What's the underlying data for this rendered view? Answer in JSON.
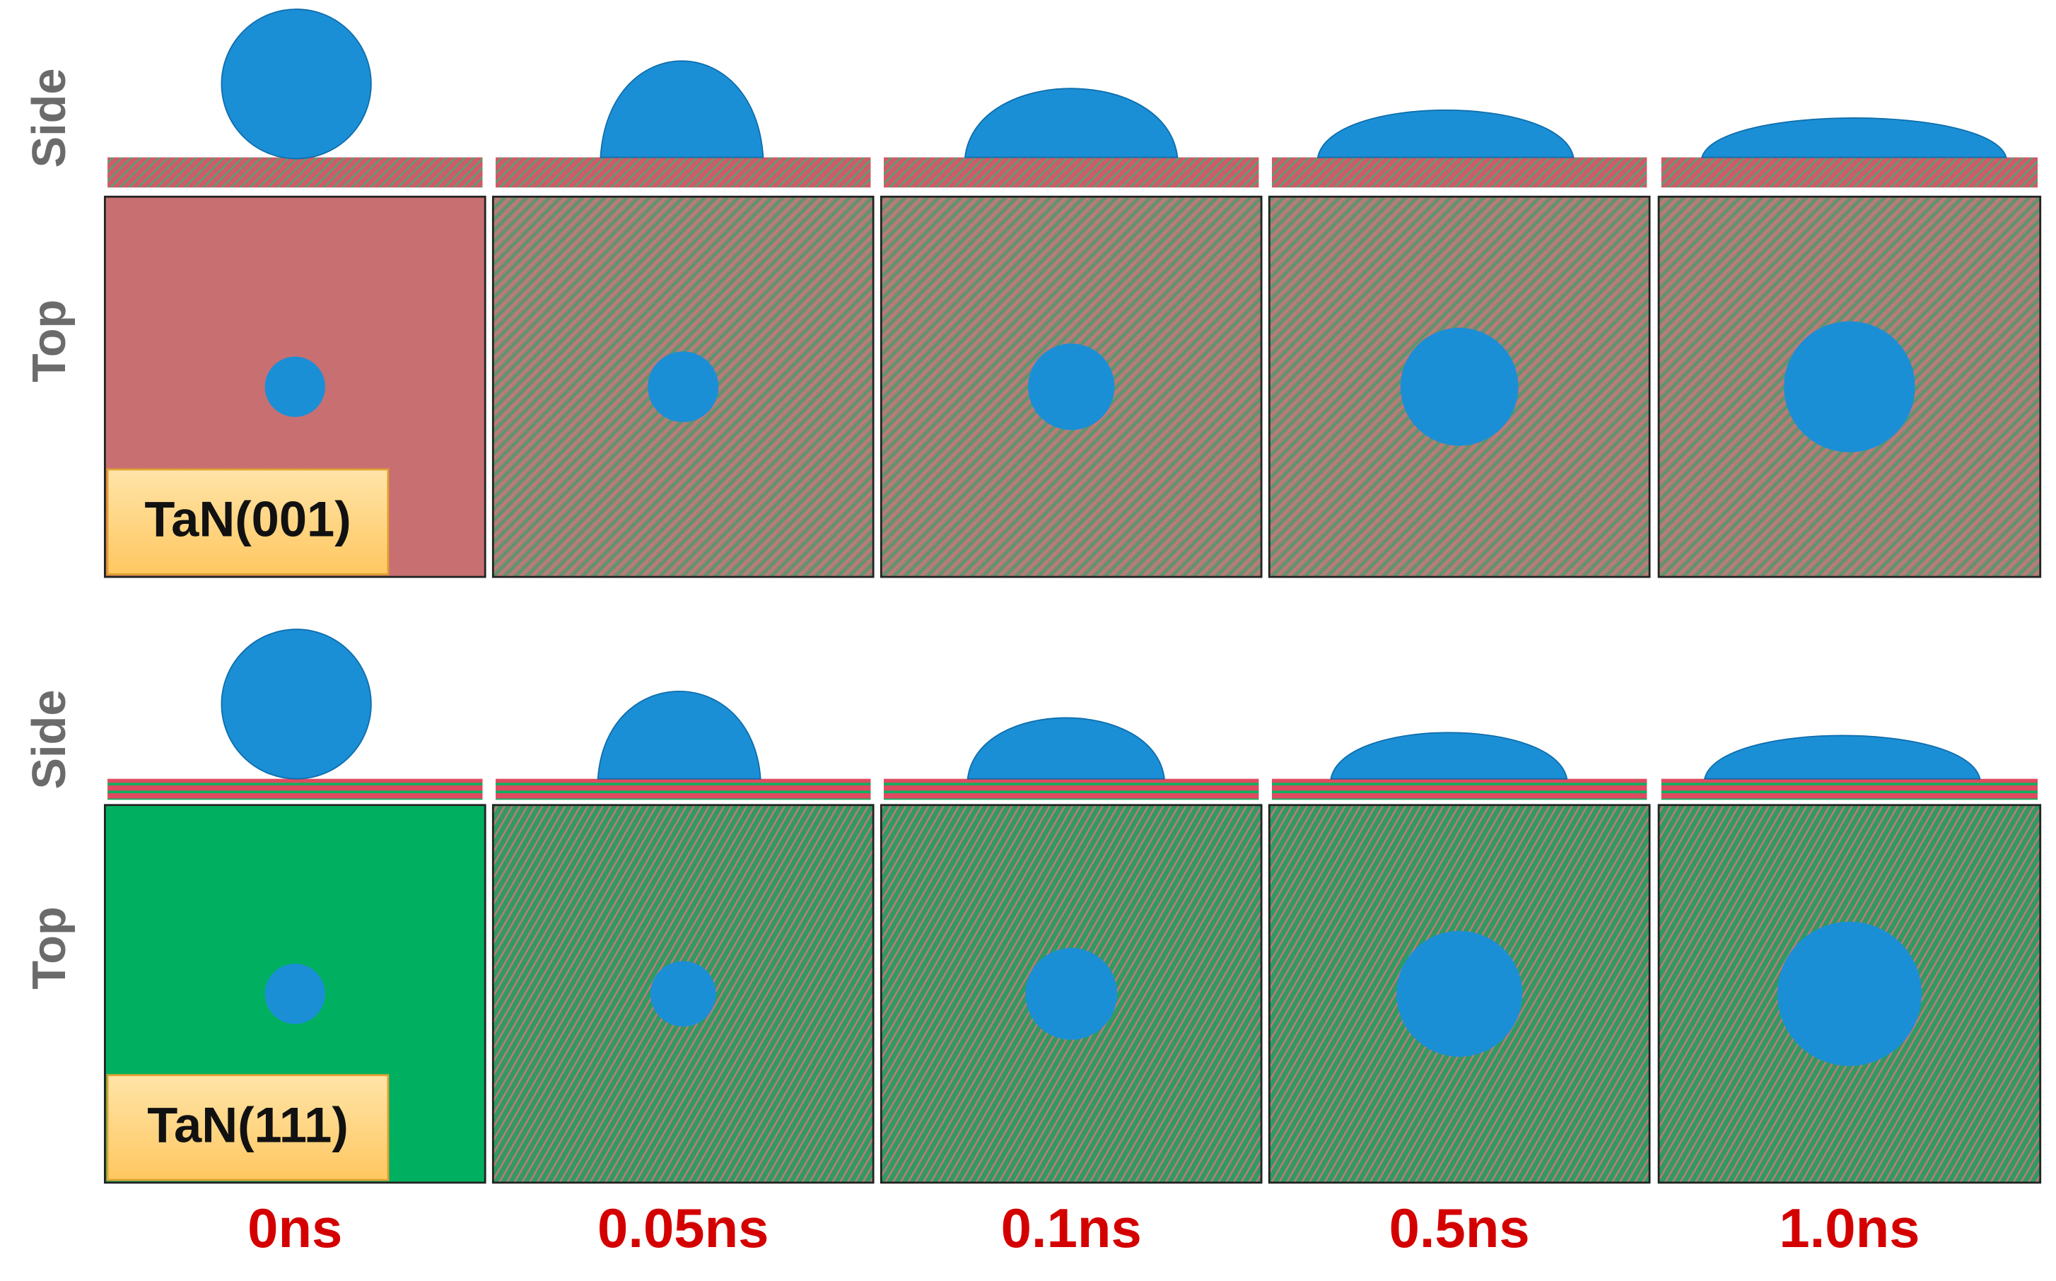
{
  "rows": [
    {
      "side_label": "Side",
      "top_label": "Top",
      "surface": "TaN(001)"
    },
    {
      "side_label": "Side",
      "top_label": "Top",
      "surface": "TaN(111)"
    }
  ],
  "times": [
    "0ns",
    "0.05ns",
    "0.1ns",
    "0.5ns",
    "1.0ns"
  ]
}
